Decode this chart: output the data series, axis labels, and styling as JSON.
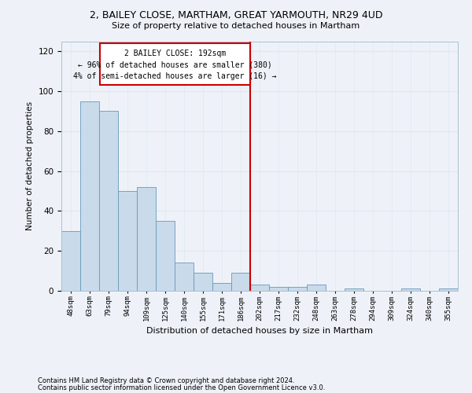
{
  "title1": "2, BAILEY CLOSE, MARTHAM, GREAT YARMOUTH, NR29 4UD",
  "title2": "Size of property relative to detached houses in Martham",
  "xlabel": "Distribution of detached houses by size in Martham",
  "ylabel": "Number of detached properties",
  "categories": [
    "48sqm",
    "63sqm",
    "79sqm",
    "94sqm",
    "109sqm",
    "125sqm",
    "140sqm",
    "155sqm",
    "171sqm",
    "186sqm",
    "202sqm",
    "217sqm",
    "232sqm",
    "248sqm",
    "263sqm",
    "278sqm",
    "294sqm",
    "309sqm",
    "324sqm",
    "340sqm",
    "355sqm"
  ],
  "values": [
    30,
    95,
    90,
    50,
    52,
    35,
    14,
    9,
    4,
    9,
    3,
    2,
    2,
    3,
    0,
    1,
    0,
    0,
    1,
    0,
    1
  ],
  "bar_color": "#c9daea",
  "bar_edge_color": "#6699bb",
  "grid_color": "#dde8f0",
  "background_color": "#eef2f8",
  "vline_x": 9.5,
  "vline_color": "#cc0000",
  "annotation_title": "2 BAILEY CLOSE: 192sqm",
  "annotation_line1": "← 96% of detached houses are smaller (380)",
  "annotation_line2": "4% of semi-detached houses are larger (16) →",
  "annotation_box_color": "#cc0000",
  "footer1": "Contains HM Land Registry data © Crown copyright and database right 2024.",
  "footer2": "Contains public sector information licensed under the Open Government Licence v3.0.",
  "ylim": [
    0,
    125
  ],
  "yticks": [
    0,
    20,
    40,
    60,
    80,
    100,
    120
  ]
}
